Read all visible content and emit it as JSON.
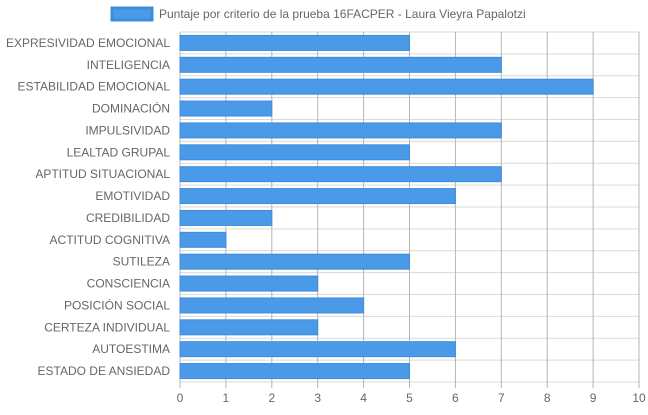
{
  "colors": {
    "bar_fill": "#4a9ae8",
    "bar_stroke": "#3d8ddc",
    "grid": "#d9d9d9",
    "grid_vertical": "#b5b5b5",
    "text": "#666666"
  },
  "chart_data": {
    "type": "bar",
    "orientation": "horizontal",
    "legend_position": "top",
    "grid": true,
    "xlim": [
      0,
      10
    ],
    "x_ticks": [
      "0",
      "1",
      "2",
      "3",
      "4",
      "5",
      "6",
      "7",
      "8",
      "9",
      "10"
    ],
    "categories": [
      "EXPRESIVIDAD EMOCIONAL",
      "INTELIGENCIA",
      "ESTABILIDAD EMOCIONAL",
      "DOMINACIÓN",
      "IMPULSIVIDAD",
      "LEALTAD GRUPAL",
      "APTITUD SITUACIONAL",
      "EMOTIVIDAD",
      "CREDIBILIDAD",
      "ACTITUD COGNITIVA",
      "SUTILEZA",
      "CONSCIENCIA",
      "POSICIÓN SOCIAL",
      "CERTEZA INDIVIDUAL",
      "AUTOESTIMA",
      "ESTADO DE ANSIEDAD"
    ],
    "series": [
      {
        "name": "Puntaje por criterio de la prueba 16FACPER - Laura Vieyra Papalotzi",
        "values": [
          5,
          7,
          9,
          2,
          7,
          5,
          7,
          6,
          2,
          1,
          5,
          3,
          4,
          3,
          6,
          5
        ]
      }
    ]
  }
}
